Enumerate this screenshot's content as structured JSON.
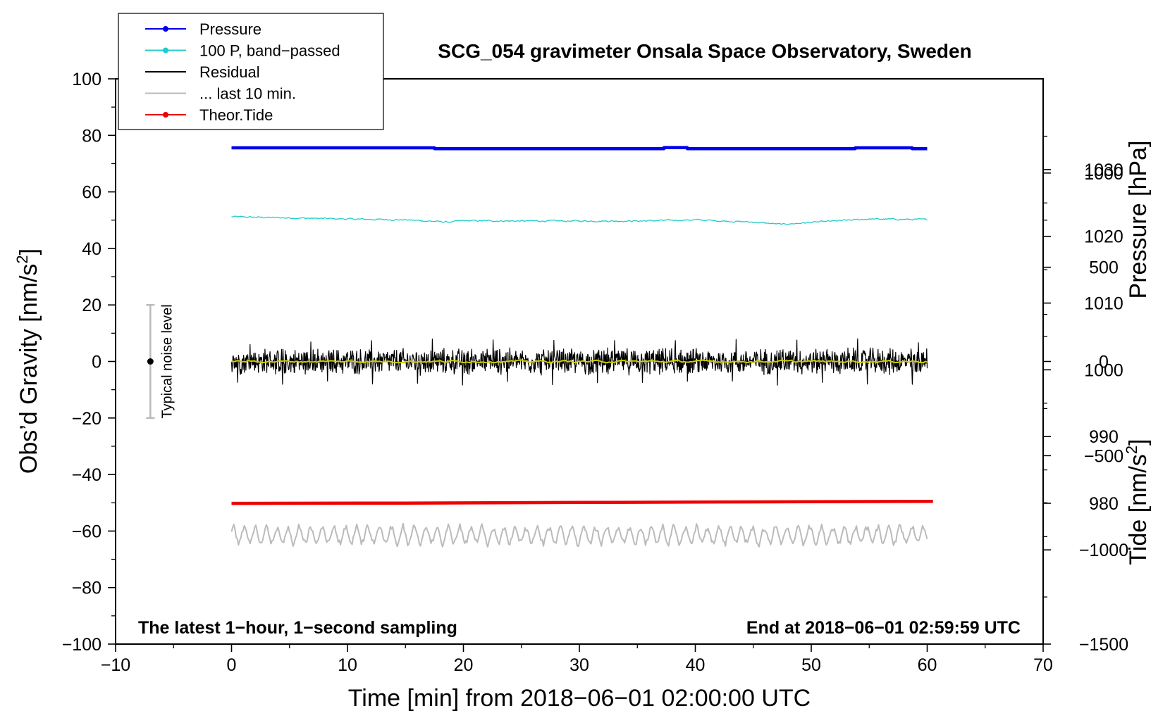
{
  "chart_data": {
    "type": "line",
    "title": "SCG_054 gravimeter Onsala Space Observatory, Sweden",
    "xlabel": "Time [min] from 2018−06−01 02:00:00 UTC",
    "ylabel_left": "Obs’d Gravity [nm/s",
    "ylabel_left_sup": "2",
    "ylabel_left_tail": "]",
    "ylabel_pressure": "Pressure [hPa]",
    "ylabel_tide": "Tide [nm/s",
    "ylabel_tide_sup": "2",
    "ylabel_tide_tail": "]",
    "xlim": [
      -10,
      70
    ],
    "ylim": [
      -100,
      100
    ],
    "x_ticks": [
      "−10",
      "0",
      "10",
      "20",
      "30",
      "40",
      "50",
      "60",
      "70"
    ],
    "x_tick_values": [
      -10,
      0,
      10,
      20,
      30,
      40,
      50,
      60,
      70
    ],
    "y_ticks": [
      "−100",
      "−80",
      "−60",
      "−40",
      "−20",
      "0",
      "20",
      "40",
      "60",
      "80",
      "100"
    ],
    "y_tick_values": [
      -100,
      -80,
      -60,
      -40,
      -20,
      0,
      20,
      40,
      60,
      80,
      100
    ],
    "pressure_axis": {
      "ticks": [
        "980",
        "990",
        "1000",
        "1010",
        "1020",
        "1030"
      ],
      "values": [
        980,
        990,
        1000,
        1010,
        1020,
        1030
      ],
      "range": [
        958.9,
        1043.6
      ]
    },
    "tide_axis": {
      "ticks": [
        "−1500",
        "−1000",
        "−500",
        "0",
        "500",
        "1000"
      ],
      "values": [
        -1500,
        -1000,
        -500,
        0,
        500,
        1000
      ],
      "range": [
        -1500,
        1500
      ]
    },
    "legend": [
      {
        "label": "Pressure",
        "color": "#0000ee",
        "marker": true
      },
      {
        "label": "100 P, band−passed",
        "color": "#22cccc",
        "marker": true
      },
      {
        "label": "Residual",
        "color": "#000000",
        "marker": false
      },
      {
        "label": "... last 10 min.",
        "color": "#bbbbbb",
        "marker": false
      },
      {
        "label": "Theor.Tide",
        "color": "#ee0000",
        "marker": true
      }
    ],
    "noise_bar": {
      "label": "Typical noise level",
      "x": -7,
      "y": 0,
      "low": -20,
      "high": 20
    },
    "annotation_left": "The latest 1−hour, 1−second sampling",
    "annotation_right": "End at 2018−06−01 02:59:59 UTC",
    "series": [
      {
        "name": "Pressure",
        "axis": "left",
        "color": "#0000ee",
        "kind": "steps",
        "x": [
          0,
          17.5,
          17.5,
          37.3,
          37.3,
          39.3,
          39.3,
          53.8,
          53.8,
          58.7,
          58.7,
          60
        ],
        "y": [
          75.6,
          75.6,
          75.3,
          75.3,
          75.7,
          75.7,
          75.3,
          75.3,
          75.6,
          75.6,
          75.3,
          75.3
        ]
      },
      {
        "name": "100 P, band−passed",
        "axis": "left",
        "color": "#22cccc",
        "kind": "noisy",
        "x": [
          0,
          5,
          10,
          15,
          18.8,
          20,
          25,
          30,
          35,
          40,
          45,
          47.5,
          50,
          55,
          60
        ],
        "y": [
          51.2,
          50.8,
          50.4,
          50.1,
          49.3,
          49.8,
          49.7,
          49.7,
          49.7,
          50.1,
          49.3,
          48.5,
          49.2,
          50.4,
          50.2
        ],
        "noise_amplitude": 0.5
      },
      {
        "name": "Residual",
        "axis": "left",
        "color": "#000000",
        "kind": "noisy",
        "x": [
          0,
          60
        ],
        "y": [
          0,
          0
        ],
        "noise_amplitude": 4.5,
        "extremes": [
          -9,
          8
        ]
      },
      {
        "name": "Residual (smoothed)",
        "axis": "left",
        "color": "#cccc00",
        "kind": "noisy",
        "x": [
          0,
          60
        ],
        "y": [
          0,
          0
        ],
        "noise_amplitude": 0.7
      },
      {
        "name": "... last 10 min.",
        "axis": "left",
        "color": "#bbbbbb",
        "kind": "wavy",
        "x": [
          0,
          60
        ],
        "y": [
          -61.5,
          -61.5
        ],
        "noise_amplitude": 3.5
      },
      {
        "name": "Theor.Tide",
        "axis": "left",
        "color": "#ee0000",
        "kind": "line",
        "x": [
          0,
          15,
          30,
          45,
          60.5
        ],
        "y": [
          -50.2,
          -50.1,
          -49.9,
          -49.7,
          -49.5
        ]
      }
    ]
  }
}
